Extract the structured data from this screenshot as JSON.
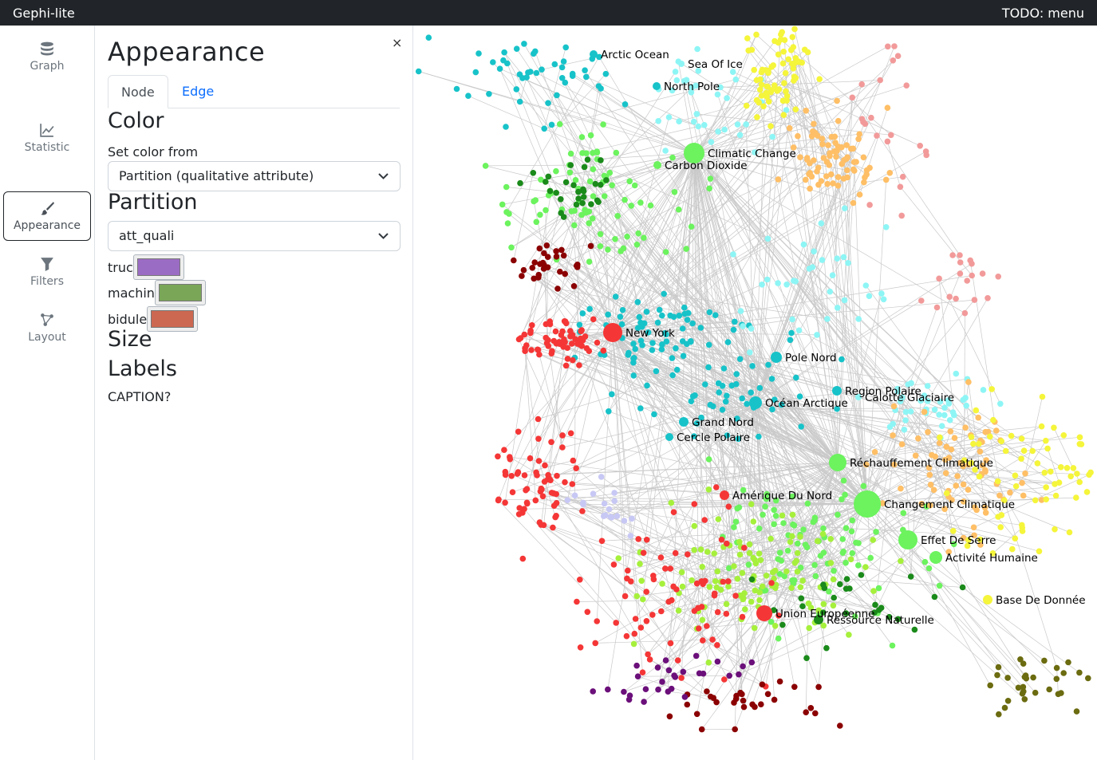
{
  "topbar": {
    "app_name": "Gephi-lite",
    "menu_label": "TODO: menu"
  },
  "sidebar": {
    "items": [
      {
        "label": "Graph",
        "icon": "database-icon"
      },
      {
        "label": "Statistic",
        "icon": "chart-line-icon"
      },
      {
        "label": "Appearance",
        "icon": "brush-icon",
        "active": true
      },
      {
        "label": "Filters",
        "icon": "filter-icon"
      },
      {
        "label": "Layout",
        "icon": "graph-nodes-icon"
      }
    ]
  },
  "panel": {
    "title": "Appearance",
    "close_label": "×",
    "tabs": [
      {
        "label": "Node",
        "active": true
      },
      {
        "label": "Edge",
        "active": false
      }
    ],
    "color_heading": "Color",
    "set_color_from_label": "Set color from",
    "set_color_from_value": "Partition (qualitative attribute)",
    "partition_heading": "Partition",
    "partition_value": "att_quali",
    "partition_values": [
      {
        "label": "truc",
        "color": "#9b6cc4"
      },
      {
        "label": "machin",
        "color": "#7aa658"
      },
      {
        "label": "bidule",
        "color": "#cc6851"
      }
    ],
    "size_heading": "Size",
    "labels_heading": "Labels",
    "caption_label": "CAPTION?"
  },
  "graph": {
    "node_colors": {
      "cyan": "#17c3c9",
      "light_cyan": "#8ef5f5",
      "green": "#6cf35e",
      "lime": "#a6f03c",
      "dark_green": "#1a8a1a",
      "red": "#f53636",
      "dark_red": "#8b0000",
      "purple": "#6b0f7a",
      "orange": "#ffbf66",
      "yellow": "#f5f53b",
      "pink": "#f29a9a",
      "lavender": "#c8c8f5",
      "olive": "#6b6b10"
    },
    "labeled_nodes": [
      {
        "label": "Arctic Ocean",
        "color": "#17c3c9"
      },
      {
        "label": "Sea Of Ice",
        "color": "#8ef5f5"
      },
      {
        "label": "North Pole",
        "color": "#17c3c9"
      },
      {
        "label": "Climatic Change",
        "color": "#6cf35e"
      },
      {
        "label": "Carbon Dioxide",
        "color": "#6cf35e"
      },
      {
        "label": "New York",
        "color": "#f53636"
      },
      {
        "label": "Pole Nord",
        "color": "#17c3c9"
      },
      {
        "label": "Region Polaire",
        "color": "#17c3c9"
      },
      {
        "label": "Calotte Glaciaire",
        "color": "#8ef5f5"
      },
      {
        "label": "Océan Arctique",
        "color": "#17c3c9"
      },
      {
        "label": "Grand Nord",
        "color": "#17c3c9"
      },
      {
        "label": "Cercle Polaire",
        "color": "#17c3c9"
      },
      {
        "label": "Réchauffement Climatique",
        "color": "#6cf35e"
      },
      {
        "label": "Amérique Du Nord",
        "color": "#f53636"
      },
      {
        "label": "Changement Climatique",
        "color": "#6cf35e"
      },
      {
        "label": "Effet De Serre",
        "color": "#6cf35e"
      },
      {
        "label": "Activité Humaine",
        "color": "#6cf35e"
      },
      {
        "label": "Base De Donnée",
        "color": "#f5f53b"
      },
      {
        "label": "Union Européenne",
        "color": "#f53636"
      },
      {
        "label": "Ressource Naturelle",
        "color": "#1a8a1a"
      }
    ]
  }
}
